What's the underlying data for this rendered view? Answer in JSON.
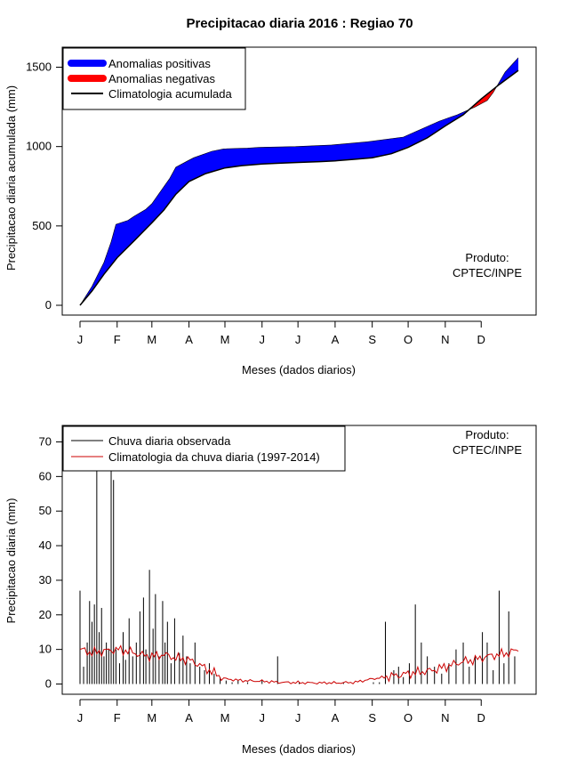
{
  "title": "Precipitacao diaria 2016 : Regiao 70",
  "colors": {
    "positive": "#0000ff",
    "negative": "#ff0000",
    "clim": "#000000",
    "daily_clim": "#cc0000"
  },
  "months": [
    "J",
    "F",
    "M",
    "A",
    "M",
    "J",
    "J",
    "A",
    "S",
    "O",
    "N",
    "D"
  ],
  "chart_data": [
    {
      "type": "area",
      "name": "accumulated",
      "xlabel": "Meses (dados diarios)",
      "ylabel": "Precipitacao diaria acumulada (mm)",
      "ylim": [
        0,
        1600
      ],
      "yticks": [
        0,
        500,
        1000,
        1500
      ],
      "legend": [
        "Anomalias positivas",
        "Anomalias negativas",
        "Climatologia acumulada"
      ],
      "credit_line1": "Produto:",
      "credit_line2": "CPTEC/INPE",
      "observed_accum": {
        "day": [
          0,
          10,
          20,
          26,
          30,
          40,
          45,
          55,
          60,
          75,
          80,
          90,
          95,
          110,
          120,
          140,
          150,
          180,
          210,
          240,
          270,
          300,
          315,
          330,
          340,
          345,
          355,
          366
        ],
        "mm": [
          0,
          120,
          270,
          400,
          510,
          535,
          560,
          605,
          640,
          800,
          870,
          910,
          930,
          970,
          985,
          990,
          995,
          1000,
          1010,
          1030,
          1060,
          1160,
          1200,
          1250,
          1290,
          1340,
          1470,
          1560
        ]
      },
      "climatology_accum": {
        "day": [
          0,
          10,
          20,
          31,
          45,
          60,
          70,
          80,
          91,
          105,
          121,
          135,
          152,
          166,
          182,
          200,
          213,
          230,
          244,
          260,
          274,
          290,
          305,
          320,
          335,
          350,
          366
        ],
        "mm": [
          0,
          90,
          195,
          300,
          405,
          520,
          600,
          700,
          780,
          830,
          865,
          880,
          890,
          895,
          900,
          905,
          910,
          920,
          930,
          955,
          995,
          1055,
          1130,
          1200,
          1300,
          1390,
          1480
        ]
      }
    },
    {
      "type": "bar",
      "name": "daily",
      "xlabel": "Meses (dados diarios)",
      "ylabel": "Precipitacao diaria (mm)",
      "ylim": [
        0,
        70
      ],
      "yticks": [
        0,
        10,
        20,
        30,
        40,
        50,
        60,
        70
      ],
      "legend": [
        "Chuva diaria observada",
        "Climatologia da chuva diaria (1997-2014)"
      ],
      "credit_line1": "Produto:",
      "credit_line2": "CPTEC/INPE",
      "observed_daily": {
        "day": [
          0,
          3,
          6,
          8,
          10,
          12,
          14,
          16,
          18,
          20,
          22,
          24,
          26,
          28,
          30,
          33,
          36,
          38,
          41,
          44,
          47,
          50,
          53,
          55,
          58,
          61,
          63,
          66,
          69,
          71,
          73,
          76,
          79,
          83,
          86,
          89,
          92,
          96,
          100,
          104,
          108,
          112,
          117,
          122,
          127,
          132,
          140,
          152,
          165,
          183,
          220,
          245,
          250,
          255,
          262,
          266,
          270,
          275,
          280,
          285,
          290,
          296,
          302,
          308,
          314,
          320,
          325,
          330,
          336,
          340,
          345,
          350,
          354,
          358,
          363
        ],
        "mm": [
          27,
          5,
          12,
          24,
          18,
          23,
          62,
          15,
          22,
          8,
          12,
          10,
          63,
          59,
          10,
          6,
          15,
          7,
          19,
          8,
          12,
          21,
          25,
          10,
          33,
          16,
          26,
          8,
          24,
          12,
          18,
          6,
          19,
          9,
          14,
          8,
          6,
          12,
          5,
          4,
          6,
          3,
          2,
          1,
          0.5,
          1,
          0.5,
          1,
          8,
          0.5,
          0.5,
          0.5,
          0.5,
          18,
          4,
          5,
          2,
          6,
          23,
          12,
          8,
          5,
          3,
          6,
          10,
          12,
          5,
          8,
          15,
          12,
          4,
          27,
          6,
          21,
          8
        ]
      },
      "climatology_daily": {
        "day": [
          0,
          10,
          20,
          31,
          40,
          50,
          60,
          70,
          80,
          91,
          100,
          110,
          121,
          135,
          152,
          166,
          182,
          200,
          213,
          230,
          244,
          255,
          265,
          274,
          285,
          295,
          305,
          315,
          320,
          330,
          340,
          350,
          358,
          366
        ],
        "mm": [
          10,
          9,
          9.5,
          10,
          9.5,
          8.5,
          8,
          8.5,
          7.5,
          7,
          5.5,
          3.5,
          1.5,
          1,
          0.8,
          0.5,
          0.4,
          0.3,
          0.3,
          0.5,
          1.5,
          2,
          2.5,
          3,
          3.5,
          4,
          5,
          6,
          6.5,
          7,
          8,
          8.5,
          9,
          10
        ]
      }
    }
  ]
}
